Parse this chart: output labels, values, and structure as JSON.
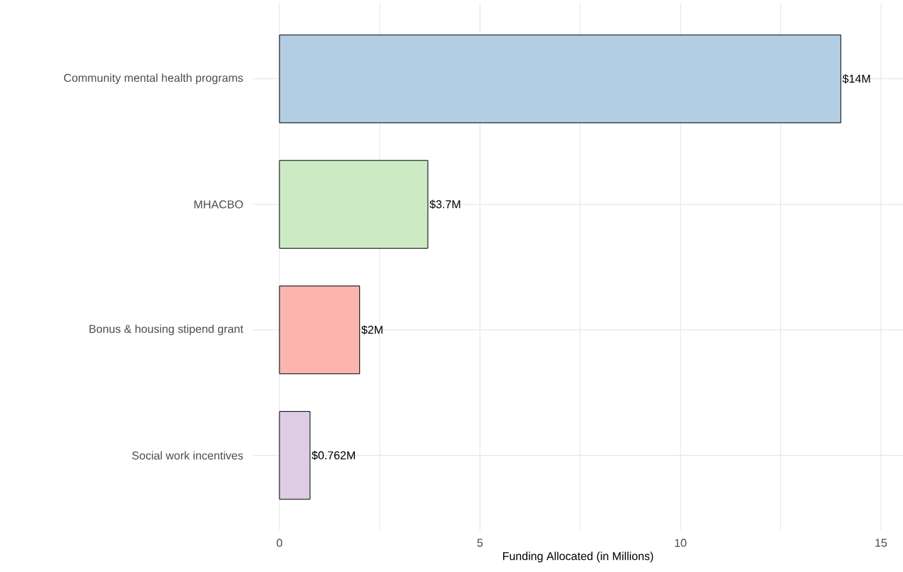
{
  "chart_data": {
    "type": "bar",
    "orientation": "horizontal",
    "categories": [
      "Community mental health programs",
      "MHACBO",
      "Bonus & housing stipend grant",
      "Social work incentives"
    ],
    "values": [
      14,
      3.7,
      2,
      0.762
    ],
    "value_labels": [
      "$14M",
      "$3.7M",
      "$2M",
      "$0.762M"
    ],
    "colors": [
      "#b3cde3",
      "#ccebc5",
      "#fbb4ae",
      "#decbe4"
    ],
    "xlabel": "Funding Allocated (in Millions)",
    "xlim": [
      -0.66,
      15.55
    ],
    "xticks": [
      0,
      {
        "value": 2.5,
        "label": null
      },
      5,
      {
        "value": 7.5,
        "label": null
      },
      10,
      {
        "value": 12.5,
        "label": null
      },
      15
    ],
    "grid": true
  }
}
